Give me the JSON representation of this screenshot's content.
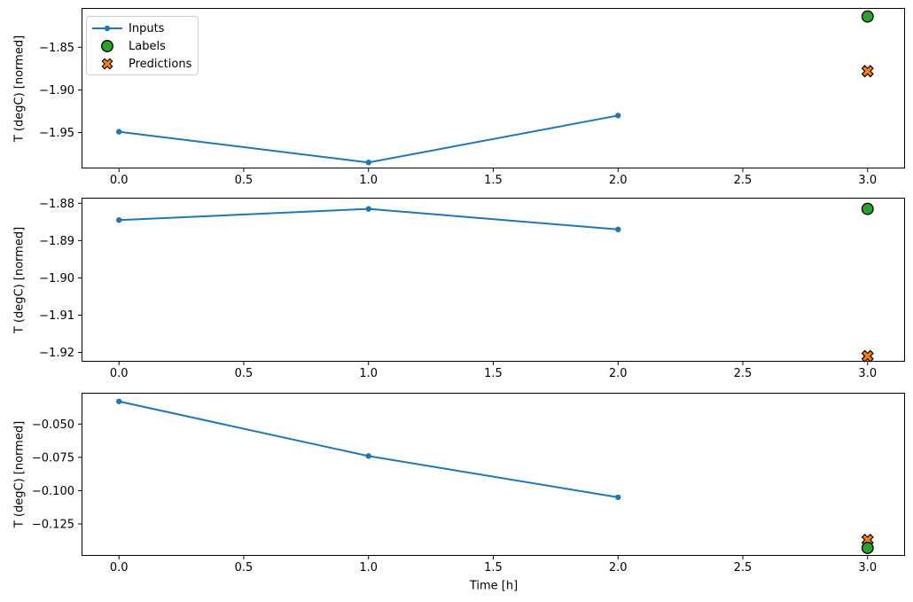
{
  "figure": {
    "xlabel": "Time [h]",
    "background_color": "#ffffff",
    "spine_color": "#000000",
    "legend": {
      "border_color": "#cccccc",
      "entries": [
        {
          "label": "Inputs",
          "marker": "line-dot",
          "color": "#1f77b4",
          "edge": "#1f77b4"
        },
        {
          "label": "Labels",
          "marker": "circle",
          "color": "#2ca02c",
          "edge": "#000000"
        },
        {
          "label": "Predictions",
          "marker": "X",
          "color": "#ff7f0e",
          "edge": "#000000"
        }
      ]
    }
  },
  "chart_data": [
    {
      "type": "line",
      "panel": "top",
      "title": "",
      "xlabel": "",
      "ylabel": "T (degC) [normed]",
      "grid": false,
      "legend_position": "upper left",
      "xlim": [
        -0.15,
        3.15
      ],
      "ylim": [
        -1.992,
        -1.804
      ],
      "xticks": [
        0.0,
        0.5,
        1.0,
        1.5,
        2.0,
        2.5,
        3.0
      ],
      "xtick_labels": [
        "0.0",
        "0.5",
        "1.0",
        "1.5",
        "2.0",
        "2.5",
        "3.0"
      ],
      "yticks": [
        -1.85,
        -1.9,
        -1.95
      ],
      "ytick_labels": [
        "−1.85",
        "−1.90",
        "−1.95"
      ],
      "series": [
        {
          "name": "Inputs",
          "type": "line",
          "marker": "dot",
          "color": "#1f77b4",
          "x": [
            0,
            1,
            2
          ],
          "y": [
            -1.949,
            -1.985,
            -1.93
          ]
        },
        {
          "name": "Predictions",
          "type": "scatter",
          "marker": "X",
          "color": "#ff7f0e",
          "edge": "#000000",
          "x": [
            3
          ],
          "y": [
            -1.878
          ]
        },
        {
          "name": "Labels",
          "type": "scatter",
          "marker": "circle",
          "color": "#2ca02c",
          "edge": "#000000",
          "x": [
            3
          ],
          "y": [
            -1.814
          ]
        }
      ]
    },
    {
      "type": "line",
      "panel": "middle",
      "title": "",
      "xlabel": "",
      "ylabel": "T (degC) [normed]",
      "grid": false,
      "xlim": [
        -0.15,
        3.15
      ],
      "ylim": [
        -1.9225,
        -1.8785
      ],
      "xticks": [
        0.0,
        0.5,
        1.0,
        1.5,
        2.0,
        2.5,
        3.0
      ],
      "xtick_labels": [
        "0.0",
        "0.5",
        "1.0",
        "1.5",
        "2.0",
        "2.5",
        "3.0"
      ],
      "yticks": [
        -1.88,
        -1.89,
        -1.9,
        -1.91,
        -1.92
      ],
      "ytick_labels": [
        "−1.88",
        "−1.89",
        "−1.90",
        "−1.91",
        "−1.92"
      ],
      "series": [
        {
          "name": "Inputs",
          "type": "line",
          "marker": "dot",
          "color": "#1f77b4",
          "x": [
            0,
            1,
            2
          ],
          "y": [
            -1.8845,
            -1.8815,
            -1.887
          ]
        },
        {
          "name": "Predictions",
          "type": "scatter",
          "marker": "X",
          "color": "#ff7f0e",
          "edge": "#000000",
          "x": [
            3
          ],
          "y": [
            -1.921
          ]
        },
        {
          "name": "Labels",
          "type": "scatter",
          "marker": "circle",
          "color": "#2ca02c",
          "edge": "#000000",
          "x": [
            3
          ],
          "y": [
            -1.8815
          ]
        }
      ]
    },
    {
      "type": "line",
      "panel": "bottom",
      "title": "",
      "xlabel": "Time [h]",
      "ylabel": "T (degC) [normed]",
      "grid": false,
      "xlim": [
        -0.15,
        3.15
      ],
      "ylim": [
        -0.149,
        -0.0265
      ],
      "xticks": [
        0.0,
        0.5,
        1.0,
        1.5,
        2.0,
        2.5,
        3.0
      ],
      "xtick_labels": [
        "0.0",
        "0.5",
        "1.0",
        "1.5",
        "2.0",
        "2.5",
        "3.0"
      ],
      "yticks": [
        -0.05,
        -0.075,
        -0.1,
        -0.125
      ],
      "ytick_labels": [
        "−0.050",
        "−0.075",
        "−0.100",
        "−0.125"
      ],
      "series": [
        {
          "name": "Inputs",
          "type": "line",
          "marker": "dot",
          "color": "#1f77b4",
          "x": [
            0,
            1,
            2
          ],
          "y": [
            -0.033,
            -0.074,
            -0.105
          ]
        },
        {
          "name": "Predictions",
          "type": "scatter",
          "marker": "X",
          "color": "#ff7f0e",
          "edge": "#000000",
          "x": [
            3
          ],
          "y": [
            -0.137
          ]
        },
        {
          "name": "Labels",
          "type": "scatter",
          "marker": "circle",
          "color": "#2ca02c",
          "edge": "#000000",
          "x": [
            3
          ],
          "y": [
            -0.143
          ]
        }
      ]
    }
  ]
}
